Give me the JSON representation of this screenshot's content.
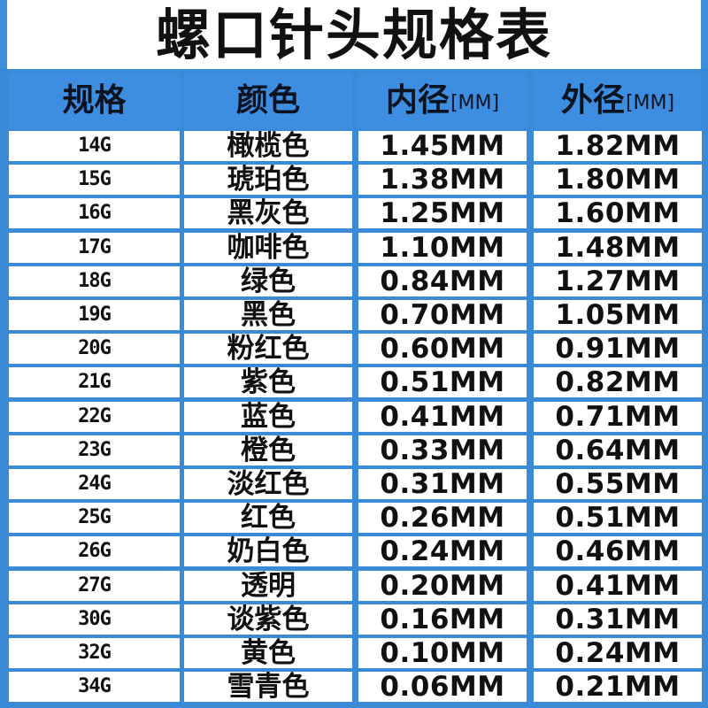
{
  "title": "螺口针头规格表",
  "header": {
    "gauge": "规格",
    "color": "颜色",
    "inner": "内径",
    "inner_unit": "[MM]",
    "outer": "外径",
    "outer_unit": "[MM]"
  },
  "rows": [
    {
      "gauge": "14G",
      "color": "橄榄色",
      "inner": "1.45MM",
      "outer": "1.82MM"
    },
    {
      "gauge": "15G",
      "color": "琥珀色",
      "inner": "1.38MM",
      "outer": "1.80MM"
    },
    {
      "gauge": "16G",
      "color": "黑灰色",
      "inner": "1.25MM",
      "outer": "1.60MM"
    },
    {
      "gauge": "17G",
      "color": "咖啡色",
      "inner": "1.10MM",
      "outer": "1.48MM"
    },
    {
      "gauge": "18G",
      "color": "绿色",
      "inner": "0.84MM",
      "outer": "1.27MM"
    },
    {
      "gauge": "19G",
      "color": "黑色",
      "inner": "0.70MM",
      "outer": "1.05MM"
    },
    {
      "gauge": "20G",
      "color": "粉红色",
      "inner": "0.60MM",
      "outer": "0.91MM"
    },
    {
      "gauge": "21G",
      "color": "紫色",
      "inner": "0.51MM",
      "outer": "0.82MM"
    },
    {
      "gauge": "22G",
      "color": "蓝色",
      "inner": "0.41MM",
      "outer": "0.71MM"
    },
    {
      "gauge": "23G",
      "color": "橙色",
      "inner": "0.33MM",
      "outer": "0.64MM"
    },
    {
      "gauge": "24G",
      "color": "淡红色",
      "inner": "0.31MM",
      "outer": "0.55MM"
    },
    {
      "gauge": "25G",
      "color": "红色",
      "inner": "0.26MM",
      "outer": "0.51MM"
    },
    {
      "gauge": "26G",
      "color": "奶白色",
      "inner": "0.24MM",
      "outer": "0.46MM"
    },
    {
      "gauge": "27G",
      "color": "透明",
      "inner": "0.20MM",
      "outer": "0.41MM"
    },
    {
      "gauge": "30G",
      "color": "谈紫色",
      "inner": "0.16MM",
      "outer": "0.31MM"
    },
    {
      "gauge": "32G",
      "color": "黄色",
      "inner": "0.10MM",
      "outer": "0.24MM"
    },
    {
      "gauge": "34G",
      "color": "雪青色",
      "inner": "0.06MM",
      "outer": "0.21MM"
    }
  ],
  "colors": {
    "grid_blue": "#3b8ad8",
    "header_blue": "#3d8de0",
    "text": "#111111"
  }
}
